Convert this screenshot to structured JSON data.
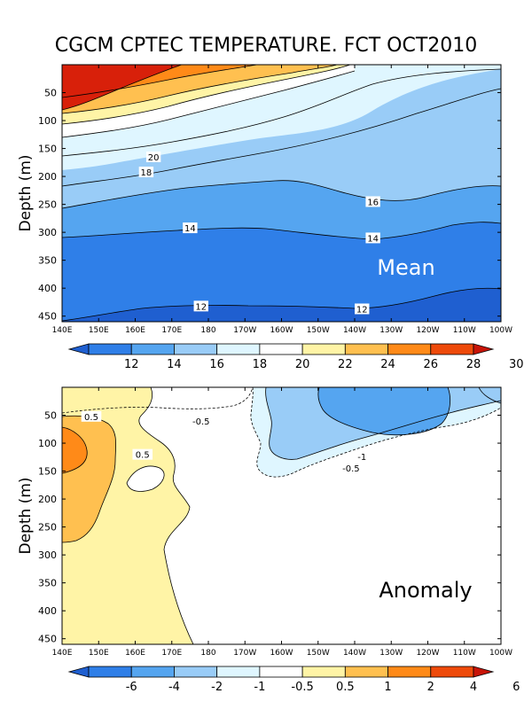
{
  "title": "CGCM CPTEC TEMPERATURE. FCT OCT2010",
  "chart_data": [
    {
      "type": "contour",
      "panel_label": "Mean",
      "xlabel": "",
      "ylabel": "Depth (m)",
      "x_ticks": [
        "140E",
        "150E",
        "160E",
        "170E",
        "180",
        "170W",
        "160W",
        "150W",
        "140W",
        "130W",
        "120W",
        "110W",
        "100W"
      ],
      "y_ticks": [
        "50",
        "100",
        "150",
        "200",
        "250",
        "300",
        "350",
        "400",
        "450"
      ],
      "ylim": [
        460,
        0
      ],
      "contour_labels": [
        {
          "text": "20",
          "lon": "165E",
          "depth": 165
        },
        {
          "text": "18",
          "lon": "163E",
          "depth": 192
        },
        {
          "text": "16",
          "lon": "135W",
          "depth": 245
        },
        {
          "text": "14",
          "lon": "175E",
          "depth": 292
        },
        {
          "text": "14",
          "lon": "135W",
          "depth": 310
        },
        {
          "text": "12",
          "lon": "178E",
          "depth": 432
        },
        {
          "text": "12",
          "lon": "138W",
          "depth": 437
        }
      ],
      "colorbar": {
        "labels": [
          "12",
          "14",
          "16",
          "18",
          "20",
          "22",
          "24",
          "26",
          "28",
          "30"
        ],
        "colors": [
          "#1f5fd0",
          "#2f7fe8",
          "#55a5f0",
          "#99ccf7",
          "#dff6ff",
          "#ffffff",
          "#fff4a6",
          "#ffc050",
          "#ff8a18",
          "#ee4a0a",
          "#c81408"
        ]
      }
    },
    {
      "type": "contour",
      "panel_label": "Anomaly",
      "xlabel": "",
      "ylabel": "Depth (m)",
      "x_ticks": [
        "140E",
        "150E",
        "160E",
        "170E",
        "180",
        "170W",
        "160W",
        "150W",
        "140W",
        "130W",
        "120W",
        "110W",
        "100W"
      ],
      "y_ticks": [
        "50",
        "100",
        "150",
        "200",
        "250",
        "300",
        "350",
        "400",
        "450"
      ],
      "ylim": [
        460,
        0
      ],
      "contour_labels": [
        {
          "text": "0.5",
          "lon": "148E",
          "depth": 52
        },
        {
          "text": "-0.5",
          "lon": "178E",
          "depth": 60
        },
        {
          "text": "0.5",
          "lon": "162E",
          "depth": 120
        },
        {
          "text": "-1",
          "lon": "138W",
          "depth": 124
        },
        {
          "text": "-0.5",
          "lon": "141W",
          "depth": 144
        }
      ],
      "colorbar": {
        "labels": [
          "-6",
          "-4",
          "-2",
          "-1",
          "-0.5",
          "0.5",
          "1",
          "2",
          "4",
          "6"
        ],
        "colors": [
          "#1f5fd0",
          "#2f7fe8",
          "#55a5f0",
          "#99ccf7",
          "#dff6ff",
          "#ffffff",
          "#fff4a6",
          "#ffc050",
          "#ff8a18",
          "#ee4a0a",
          "#c81408"
        ]
      }
    }
  ]
}
